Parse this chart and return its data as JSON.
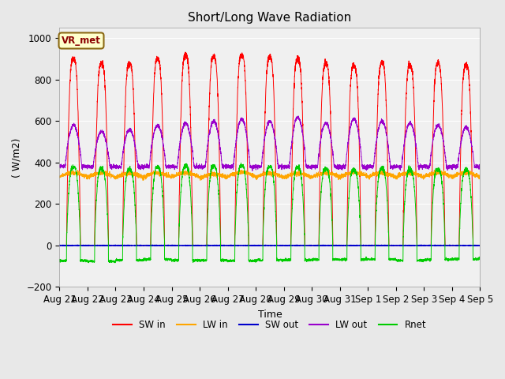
{
  "title": "Short/Long Wave Radiation",
  "ylabel": "( W/m2)",
  "xlabel": "Time",
  "ylim": [
    -200,
    1050
  ],
  "annotation": "VR_met",
  "fig_bg_color": "#e8e8e8",
  "axes_bg_color": "#f0f0f0",
  "grid_color": "#ffffff",
  "colors": {
    "SW_in": "#ff0000",
    "LW_in": "#ffa500",
    "SW_out": "#0000cc",
    "LW_out": "#9900cc",
    "Rnet": "#00cc00"
  },
  "legend_labels": [
    "SW in",
    "LW in",
    "SW out",
    "LW out",
    "Rnet"
  ],
  "x_tick_labels": [
    "Aug 21",
    "Aug 22",
    "Aug 23",
    "Aug 24",
    "Aug 25",
    "Aug 26",
    "Aug 27",
    "Aug 28",
    "Aug 29",
    "Aug 30",
    "Aug 31",
    "Sep 1",
    "Sep 2",
    "Sep 3",
    "Sep 4",
    "Sep 5"
  ],
  "n_days": 15,
  "pts_per_day": 288
}
